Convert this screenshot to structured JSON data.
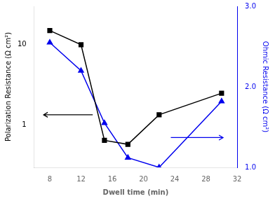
{
  "chart_data": {
    "type": "line",
    "xlabel": "Dwell time (min)",
    "ylabel": "Polarization Resistance (Ω cm²)",
    "y2label": "Ohmic Resistance (Ω cm²)",
    "x": [
      8,
      12,
      15,
      18,
      22,
      30
    ],
    "series": [
      {
        "color": "#000000",
        "marker": "square",
        "values": [
          15,
          10,
          0.65,
          0.58,
          1.35,
          2.5
        ]
      },
      {
        "color": "#0000ee",
        "marker": "triangle",
        "axis": "y2",
        "values": [
          2.55,
          2.2,
          1.55,
          1.12,
          1.0,
          1.82
        ]
      }
    ],
    "xlim": [
      6,
      32
    ],
    "xticks": [
      8,
      12,
      16,
      20,
      24,
      28,
      32
    ],
    "log": "y",
    "ylim": [
      0.3,
      30
    ],
    "yticks": [
      1,
      10
    ],
    "y2lim": [
      1.0,
      3.0
    ],
    "y2ticks": [
      {
        "value": 1.0,
        "label": "1.0"
      },
      {
        "value": 2.0,
        "label": "2.0"
      },
      {
        "value": 3.0,
        "label": "3.0"
      }
    ],
    "arrows": [
      {
        "x": 13.5,
        "x_end": 7.2,
        "y": 1.35,
        "color": "#000000"
      },
      {
        "x": 23.5,
        "x_end": 30.2,
        "y": 1.37,
        "color": "#0000ee",
        "axis": "y2"
      }
    ],
    "grid": false
  }
}
